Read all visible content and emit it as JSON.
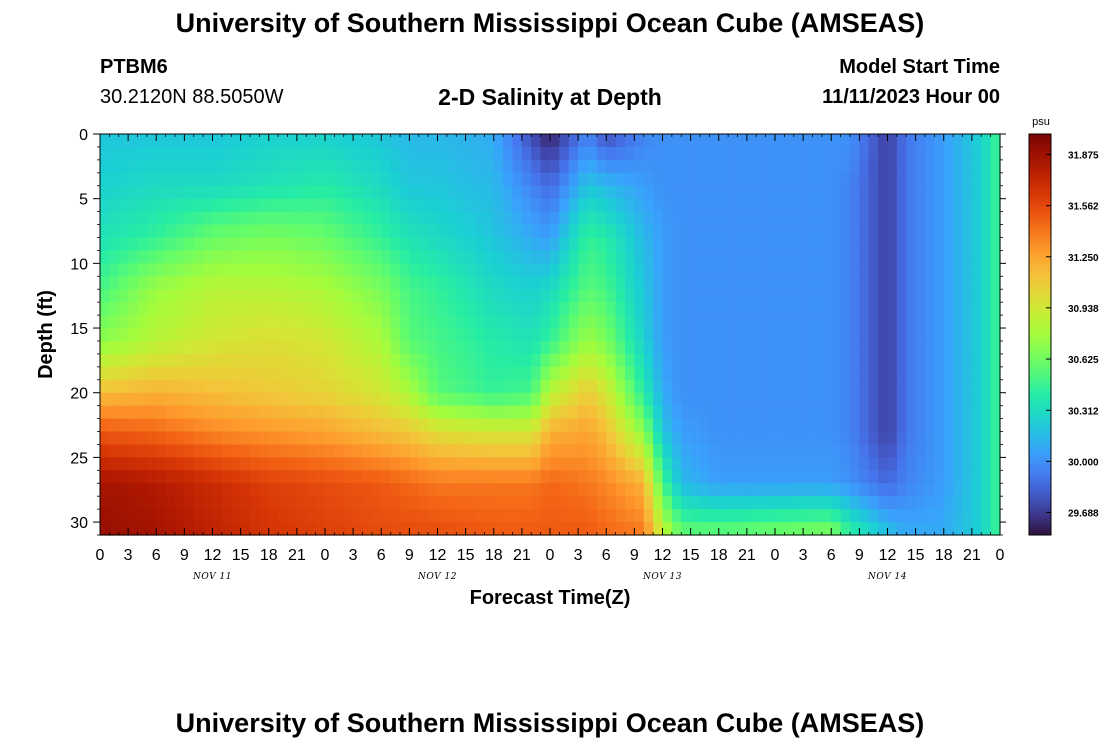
{
  "header": {
    "title": "University of Southern Mississippi Ocean Cube (AMSEAS)",
    "station": "PTBM6",
    "coordinates": "30.2120N  88.5050W",
    "subtitle": "2-D Salinity at Depth",
    "start_label": "Model Start Time",
    "start_value": "11/11/2023 Hour 00"
  },
  "footer": {
    "title": "University of Southern Mississippi Ocean Cube (AMSEAS)"
  },
  "chart_data": {
    "type": "heatmap",
    "title": "2-D Salinity at Depth",
    "xlabel": "Forecast Time(Z)",
    "ylabel": "Depth (ft)",
    "xlim": [
      0,
      96
    ],
    "ylim": [
      31,
      0
    ],
    "x_tick_labels": [
      "0",
      "3",
      "6",
      "9",
      "12",
      "15",
      "18",
      "21",
      "0",
      "3",
      "6",
      "9",
      "12",
      "15",
      "18",
      "21",
      "0",
      "3",
      "6",
      "9",
      "12",
      "15",
      "18",
      "21",
      "0",
      "3",
      "6",
      "9",
      "12",
      "15",
      "18",
      "21",
      "0"
    ],
    "y_ticks": [
      0,
      5,
      10,
      15,
      20,
      25,
      30
    ],
    "day_labels": [
      {
        "label": "NOV 11",
        "hour": 12
      },
      {
        "label": "NOV 12",
        "hour": 36
      },
      {
        "label": "NOV 13",
        "hour": 60
      },
      {
        "label": "NOV 14",
        "hour": 84
      }
    ],
    "colorbar": {
      "unit": "psu",
      "min": 29.55,
      "max": 32.0,
      "labels": [
        "31.875",
        "31.562",
        "31.250",
        "30.938",
        "30.625",
        "30.312",
        "30.000",
        "29.688"
      ]
    },
    "salinity_psu": {
      "depths_ft": [
        0,
        4,
        8,
        12,
        16,
        20,
        23,
        27,
        31
      ],
      "hours": [
        0,
        6,
        12,
        18,
        24,
        30,
        33,
        36,
        42,
        46,
        48,
        52,
        54,
        58,
        60,
        62,
        66,
        72,
        78,
        80,
        84,
        86,
        90,
        94,
        96
      ],
      "grid": [
        [
          30.2,
          30.2,
          30.2,
          30.25,
          30.25,
          30.2,
          30.15,
          30.15,
          30.1,
          29.75,
          29.6,
          29.95,
          29.75,
          29.95,
          30.0,
          30.0,
          30.0,
          30.0,
          30.0,
          30.0,
          29.7,
          29.9,
          30.05,
          30.25,
          30.5
        ],
        [
          30.25,
          30.3,
          30.3,
          30.35,
          30.4,
          30.3,
          30.2,
          30.2,
          30.15,
          29.95,
          29.85,
          30.2,
          30.15,
          30.05,
          30.0,
          30.0,
          30.0,
          30.0,
          30.0,
          29.95,
          29.7,
          29.9,
          30.05,
          30.25,
          30.5
        ],
        [
          30.35,
          30.45,
          30.6,
          30.65,
          30.6,
          30.45,
          30.35,
          30.3,
          30.2,
          30.1,
          30.05,
          30.45,
          30.4,
          30.15,
          30.05,
          30.0,
          30.0,
          30.0,
          30.0,
          29.95,
          29.7,
          29.9,
          30.05,
          30.25,
          30.5
        ],
        [
          30.5,
          30.75,
          30.85,
          30.85,
          30.8,
          30.65,
          30.5,
          30.45,
          30.3,
          30.25,
          30.3,
          30.55,
          30.5,
          30.2,
          30.05,
          30.0,
          30.0,
          30.0,
          30.0,
          29.95,
          29.7,
          29.9,
          30.05,
          30.25,
          30.5
        ],
        [
          30.7,
          30.85,
          30.95,
          31.0,
          30.95,
          30.8,
          30.55,
          30.5,
          30.4,
          30.35,
          30.45,
          30.75,
          30.65,
          30.25,
          30.05,
          30.0,
          30.0,
          30.0,
          30.0,
          29.95,
          29.7,
          29.9,
          30.05,
          30.25,
          30.5
        ],
        [
          31.15,
          31.2,
          31.15,
          31.1,
          31.05,
          30.95,
          30.8,
          30.55,
          30.45,
          30.5,
          30.85,
          31.1,
          30.95,
          30.4,
          30.1,
          30.0,
          30.0,
          30.0,
          30.0,
          29.95,
          29.7,
          29.9,
          30.05,
          30.25,
          30.5
        ],
        [
          31.5,
          31.45,
          31.35,
          31.3,
          31.25,
          31.15,
          31.1,
          31.0,
          30.95,
          30.95,
          31.2,
          31.25,
          31.15,
          30.7,
          30.2,
          30.05,
          30.0,
          30.0,
          30.0,
          29.95,
          29.7,
          29.9,
          30.05,
          30.25,
          30.5
        ],
        [
          31.85,
          31.8,
          31.7,
          31.6,
          31.55,
          31.5,
          31.45,
          31.4,
          31.4,
          31.4,
          31.45,
          31.4,
          31.35,
          31.2,
          30.5,
          30.15,
          30.05,
          30.05,
          30.05,
          30.0,
          29.85,
          29.95,
          30.05,
          30.25,
          30.5
        ],
        [
          31.9,
          31.85,
          31.75,
          31.65,
          31.6,
          31.55,
          31.55,
          31.55,
          31.5,
          31.5,
          31.5,
          31.5,
          31.45,
          31.4,
          30.9,
          30.6,
          30.6,
          30.65,
          30.7,
          30.45,
          30.2,
          30.1,
          30.1,
          30.25,
          30.5
        ]
      ]
    }
  }
}
